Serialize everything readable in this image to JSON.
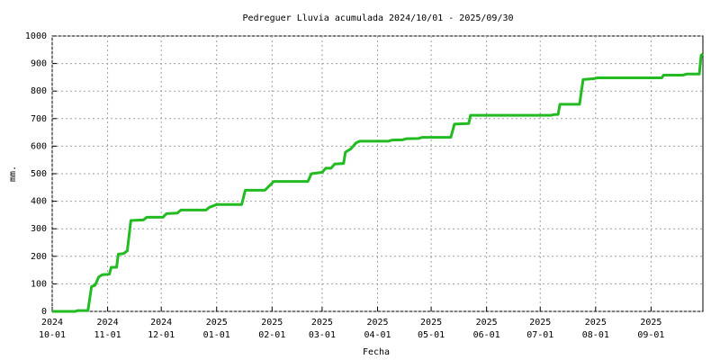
{
  "chart_data": {
    "type": "line",
    "title": "Pedreguer Lluvia acumulada 2024/10/01 - 2025/09/30",
    "x_label": "Fecha",
    "y_label": "mm.",
    "x": [
      "2024-10-01",
      "2024-10-14",
      "2024-10-15",
      "2024-10-21",
      "2024-10-23",
      "2024-10-25",
      "2024-10-27",
      "2024-10-29",
      "2024-11-02",
      "2024-11-03",
      "2024-11-06",
      "2024-11-07",
      "2024-11-10",
      "2024-11-12",
      "2024-11-14",
      "2024-11-21",
      "2024-11-23",
      "2024-12-02",
      "2024-12-04",
      "2024-12-10",
      "2024-12-12",
      "2024-12-26",
      "2024-12-28",
      "2025-01-01",
      "2025-01-15",
      "2025-01-17",
      "2025-01-28",
      "2025-02-02",
      "2025-02-21",
      "2025-02-23",
      "2025-03-01",
      "2025-03-03",
      "2025-03-06",
      "2025-03-08",
      "2025-03-13",
      "2025-03-14",
      "2025-03-17",
      "2025-03-20",
      "2025-03-22",
      "2025-04-07",
      "2025-04-09",
      "2025-04-15",
      "2025-04-17",
      "2025-04-24",
      "2025-04-26",
      "2025-05-12",
      "2025-05-14",
      "2025-05-22",
      "2025-05-23",
      "2025-07-07",
      "2025-07-09",
      "2025-07-11",
      "2025-07-12",
      "2025-07-23",
      "2025-07-25",
      "2025-07-31",
      "2025-08-02",
      "2025-09-07",
      "2025-09-08",
      "2025-09-19",
      "2025-09-21",
      "2025-09-28",
      "2025-09-29",
      "2025-09-30"
    ],
    "series": [
      {
        "name": "Lluvia acumulada",
        "color": "#22bb22",
        "values": [
          0,
          0,
          3,
          3,
          90,
          95,
          125,
          133,
          135,
          160,
          160,
          208,
          210,
          220,
          330,
          332,
          342,
          342,
          355,
          357,
          368,
          368,
          378,
          388,
          388,
          440,
          440,
          472,
          472,
          500,
          505,
          520,
          520,
          535,
          537,
          578,
          590,
          612,
          618,
          618,
          622,
          623,
          627,
          628,
          632,
          632,
          680,
          682,
          712,
          712,
          715,
          715,
          752,
          752,
          842,
          845,
          848,
          848,
          858,
          858,
          862,
          862,
          930,
          935
        ]
      }
    ],
    "xlim": [
      "2024-10-01",
      "2025-09-30"
    ],
    "xticks": [
      {
        "value": "2024-10-01",
        "label": [
          "2024",
          "10-01"
        ]
      },
      {
        "value": "2024-11-01",
        "label": [
          "2024",
          "11-01"
        ]
      },
      {
        "value": "2024-12-01",
        "label": [
          "2024",
          "12-01"
        ]
      },
      {
        "value": "2025-01-01",
        "label": [
          "2025",
          "01-01"
        ]
      },
      {
        "value": "2025-02-01",
        "label": [
          "2025",
          "02-01"
        ]
      },
      {
        "value": "2025-03-01",
        "label": [
          "2025",
          "03-01"
        ]
      },
      {
        "value": "2025-04-01",
        "label": [
          "2025",
          "04-01"
        ]
      },
      {
        "value": "2025-05-01",
        "label": [
          "2025",
          "05-01"
        ]
      },
      {
        "value": "2025-06-01",
        "label": [
          "2025",
          "06-01"
        ]
      },
      {
        "value": "2025-07-01",
        "label": [
          "2025",
          "07-01"
        ]
      },
      {
        "value": "2025-08-01",
        "label": [
          "2025",
          "08-01"
        ]
      },
      {
        "value": "2025-09-01",
        "label": [
          "2025",
          "09-01"
        ]
      }
    ],
    "ylim": [
      0,
      1000
    ],
    "yticks": [
      0,
      100,
      200,
      300,
      400,
      500,
      600,
      700,
      800,
      900,
      1000
    ],
    "grid": true
  }
}
